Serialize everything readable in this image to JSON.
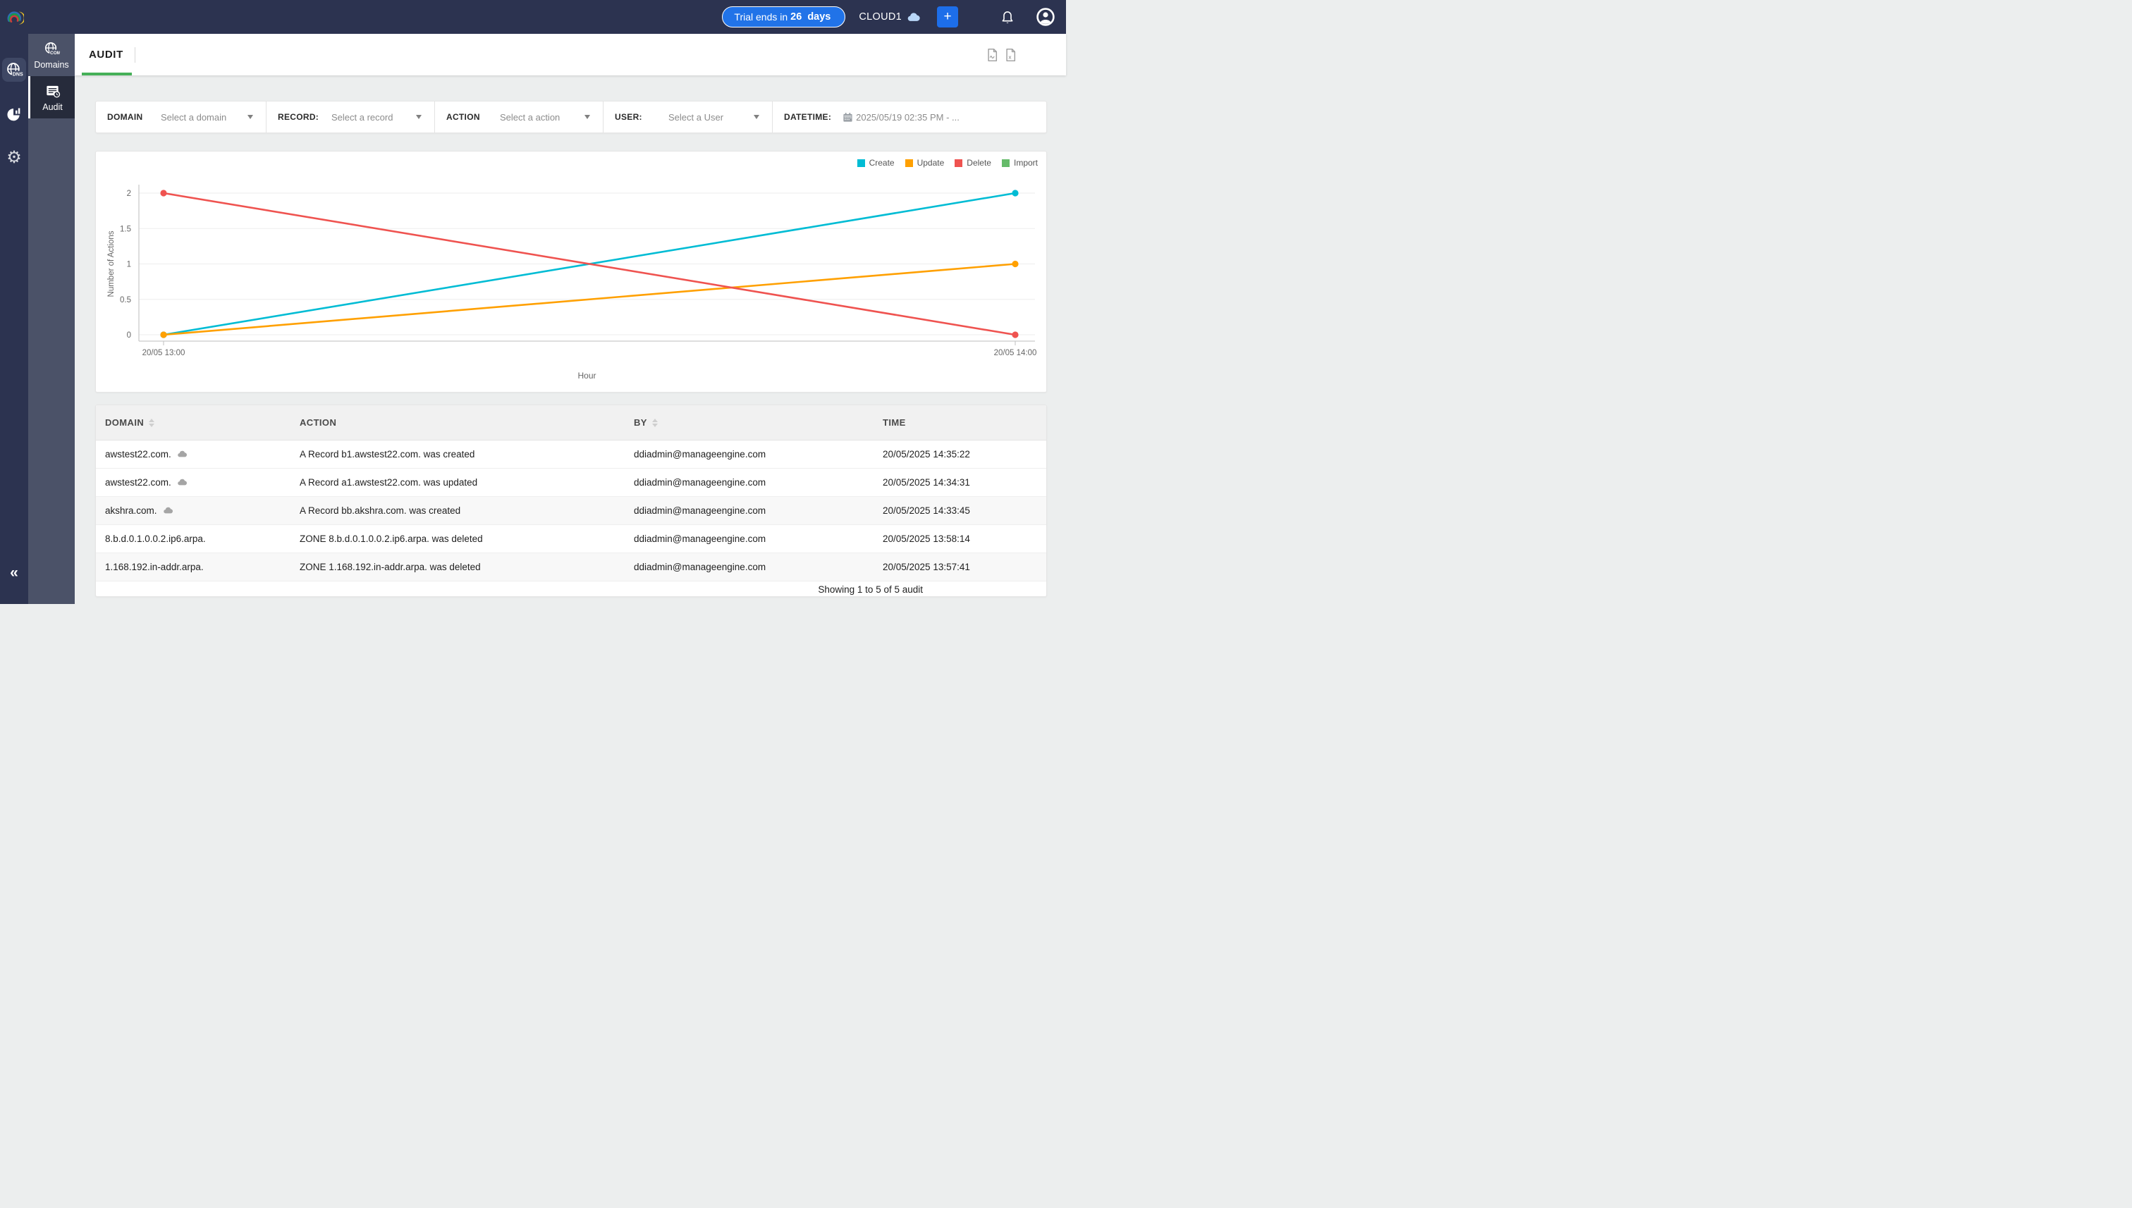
{
  "topbar": {
    "trial": {
      "prefix": "Trial ends in",
      "days": "26",
      "suffix": "days"
    },
    "org_name": "CLOUD1",
    "add_label": "+"
  },
  "sidebar": {
    "collapse": "«",
    "items": [
      {
        "label": "Domains"
      },
      {
        "label": "Audit"
      }
    ]
  },
  "header": {
    "tab": "AUDIT"
  },
  "filters": {
    "domain": {
      "label": "DOMAIN",
      "value": "Select a domain"
    },
    "record": {
      "label": "RECORD:",
      "value": "Select a record"
    },
    "action": {
      "label": "ACTION",
      "value": "Select a action"
    },
    "user": {
      "label": "USER:",
      "value": "Select a User"
    },
    "datetime": {
      "label": "DATETIME:",
      "value": "2025/05/19 02:35 PM - ..."
    }
  },
  "chart_data": {
    "type": "line",
    "x": [
      "20/05 13:00",
      "20/05 14:00"
    ],
    "series": [
      {
        "name": "Create",
        "color": "#00bcd4",
        "values": [
          0,
          2
        ]
      },
      {
        "name": "Update",
        "color": "#ffa000",
        "values": [
          0,
          1
        ]
      },
      {
        "name": "Delete",
        "color": "#ef5350",
        "values": [
          2,
          0
        ]
      },
      {
        "name": "Import",
        "color": "#66bb6a",
        "values": []
      }
    ],
    "xlabel": "Hour",
    "ylabel": "Number of Actions",
    "ylim": [
      0,
      2
    ],
    "yticks": [
      0,
      0.5,
      1,
      1.5,
      2
    ],
    "grid": true,
    "legend_position": "top-right"
  },
  "table": {
    "columns": [
      {
        "label": "DOMAIN",
        "sortable": true
      },
      {
        "label": "ACTION",
        "sortable": false
      },
      {
        "label": "BY",
        "sortable": true
      },
      {
        "label": "TIME",
        "sortable": false
      }
    ],
    "rows": [
      {
        "domain": "awstest22.com.",
        "cloud": true,
        "action": "A Record b1.awstest22.com. was created",
        "by": "ddiadmin@manageengine.com",
        "time": "20/05/2025 14:35:22"
      },
      {
        "domain": "awstest22.com.",
        "cloud": true,
        "action": "A Record a1.awstest22.com. was updated",
        "by": "ddiadmin@manageengine.com",
        "time": "20/05/2025 14:34:31"
      },
      {
        "domain": "akshra.com.",
        "cloud": true,
        "action": "A Record bb.akshra.com. was created",
        "by": "ddiadmin@manageengine.com",
        "time": "20/05/2025 14:33:45"
      },
      {
        "domain": "8.b.d.0.1.0.0.2.ip6.arpa.",
        "cloud": false,
        "action": "ZONE 8.b.d.0.1.0.0.2.ip6.arpa. was deleted",
        "by": "ddiadmin@manageengine.com",
        "time": "20/05/2025 13:58:14"
      },
      {
        "domain": "1.168.192.in-addr.arpa.",
        "cloud": false,
        "action": "ZONE 1.168.192.in-addr.arpa. was deleted",
        "by": "ddiadmin@manageengine.com",
        "time": "20/05/2025 13:57:41"
      }
    ],
    "footer": "Showing 1 to 5 of 5 audit"
  },
  "colors": {
    "navbar": "#2c3350",
    "sidebar": "#4b5268",
    "active_item": "#262b3b",
    "accent_blue": "#2173e8",
    "tab_green": "#45b058",
    "create": "#00bcd4",
    "update": "#ffa000",
    "delete": "#ef5350",
    "import": "#66bb6a"
  }
}
